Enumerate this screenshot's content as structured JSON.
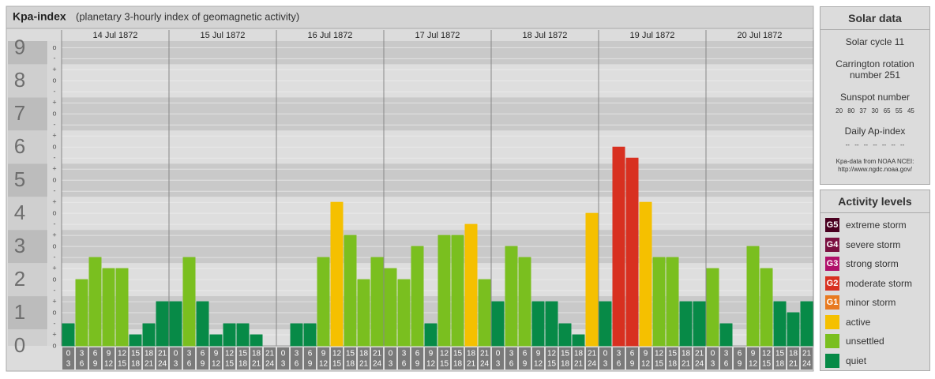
{
  "chart_data": {
    "type": "bar",
    "title": "Kpa-index",
    "subtitle": "(planetary 3-hourly index of geomagnetic activity)",
    "days": [
      "14 Jul 1872",
      "15 Jul 1872",
      "16 Jul 1872",
      "17 Jul 1872",
      "18 Jul 1872",
      "19 Jul 1872",
      "20 Jul 1872"
    ],
    "intervals": [
      [
        "0",
        "3"
      ],
      [
        "3",
        "6"
      ],
      [
        "6",
        "9"
      ],
      [
        "9",
        "12"
      ],
      [
        "12",
        "15"
      ],
      [
        "15",
        "18"
      ],
      [
        "18",
        "21"
      ],
      [
        "21",
        "24"
      ]
    ],
    "values": [
      0.667,
      2,
      2.667,
      2.333,
      2.333,
      0.333,
      0.667,
      1.333,
      1.333,
      2.667,
      1.333,
      0.333,
      0.667,
      0.667,
      0.333,
      0,
      0,
      0.667,
      0.667,
      2.667,
      4.333,
      3.333,
      2,
      2.667,
      2.333,
      2,
      3,
      0.667,
      3.333,
      3.333,
      3.667,
      2,
      1.333,
      3,
      2.667,
      1.333,
      1.333,
      0.667,
      0.333,
      4,
      1.333,
      6,
      5.667,
      4.333,
      2.667,
      2.667,
      1.333,
      1.333,
      2.333,
      0.667,
      0,
      3,
      2.333,
      1.333,
      1,
      1.333
    ],
    "colors": [
      "#078a47",
      "#7abf1f",
      "#7abf1f",
      "#7abf1f",
      "#7abf1f",
      "#078a47",
      "#078a47",
      "#078a47",
      "#078a47",
      "#7abf1f",
      "#078a47",
      "#078a47",
      "#078a47",
      "#078a47",
      "#078a47",
      "#078a47",
      "#078a47",
      "#078a47",
      "#078a47",
      "#7abf1f",
      "#f5c000",
      "#7abf1f",
      "#7abf1f",
      "#7abf1f",
      "#7abf1f",
      "#7abf1f",
      "#7abf1f",
      "#078a47",
      "#7abf1f",
      "#7abf1f",
      "#f5c000",
      "#7abf1f",
      "#078a47",
      "#7abf1f",
      "#7abf1f",
      "#078a47",
      "#078a47",
      "#078a47",
      "#078a47",
      "#f5c000",
      "#078a47",
      "#d83020",
      "#d83020",
      "#f5c000",
      "#7abf1f",
      "#7abf1f",
      "#078a47",
      "#078a47",
      "#7abf1f",
      "#078a47",
      "#078a47",
      "#7abf1f",
      "#7abf1f",
      "#078a47",
      "#078a47",
      "#078a47"
    ],
    "ylim": [
      0,
      9.2
    ],
    "yticks": [
      0,
      1,
      2,
      3,
      4,
      5,
      6,
      7,
      8,
      9
    ],
    "yminor": [
      {
        "value": 0,
        "label": "o"
      },
      {
        "value": 0.333,
        "label": "+"
      },
      {
        "value": 0.667,
        "label": "-"
      },
      {
        "value": 1,
        "label": "o"
      },
      {
        "value": 1.333,
        "label": "+"
      },
      {
        "value": 1.667,
        "label": "-"
      },
      {
        "value": 2,
        "label": "o"
      },
      {
        "value": 2.333,
        "label": "+"
      },
      {
        "value": 2.667,
        "label": "-"
      },
      {
        "value": 3,
        "label": "o"
      },
      {
        "value": 3.333,
        "label": "+"
      },
      {
        "value": 3.667,
        "label": "-"
      },
      {
        "value": 4,
        "label": "o"
      },
      {
        "value": 4.333,
        "label": "+"
      },
      {
        "value": 4.667,
        "label": "-"
      },
      {
        "value": 5,
        "label": "o"
      },
      {
        "value": 5.333,
        "label": "+"
      },
      {
        "value": 5.667,
        "label": "-"
      },
      {
        "value": 6,
        "label": "o"
      },
      {
        "value": 6.333,
        "label": "+"
      },
      {
        "value": 6.667,
        "label": "-"
      },
      {
        "value": 7,
        "label": "o"
      },
      {
        "value": 7.333,
        "label": "+"
      },
      {
        "value": 7.667,
        "label": "-"
      },
      {
        "value": 8,
        "label": "o"
      },
      {
        "value": 8.333,
        "label": "+"
      },
      {
        "value": 8.667,
        "label": "-"
      },
      {
        "value": 9,
        "label": "o"
      }
    ]
  },
  "solar_data": {
    "title": "Solar data",
    "cycle": "Solar cycle 11",
    "rotation": [
      "Carrington rotation",
      "number 251"
    ],
    "sunspot_title": "Sunspot number",
    "sunspots": [
      20,
      80,
      37,
      30,
      65,
      55,
      45
    ],
    "ap_title": "Daily Ap-index",
    "ap": [
      "--",
      "--",
      "--",
      "--",
      "--",
      "--",
      "--"
    ],
    "source": [
      "Kpa-data from NOAA NCEI:",
      "http://www.ngdc.noaa.gov/"
    ]
  },
  "activity_levels": {
    "title": "Activity levels",
    "items": [
      {
        "badge": "G5",
        "label": "extreme storm",
        "color": "#4a0020"
      },
      {
        "badge": "G4",
        "label": "severe storm",
        "color": "#7a1040"
      },
      {
        "badge": "G3",
        "label": "strong storm",
        "color": "#b0106a"
      },
      {
        "badge": "G2",
        "label": "moderate storm",
        "color": "#d83020"
      },
      {
        "badge": "G1",
        "label": "minor storm",
        "color": "#e87a20"
      },
      {
        "label": "active",
        "color": "#f5c000"
      },
      {
        "label": "unsettled",
        "color": "#7abf1f"
      },
      {
        "label": "quiet",
        "color": "#078a47"
      }
    ]
  }
}
